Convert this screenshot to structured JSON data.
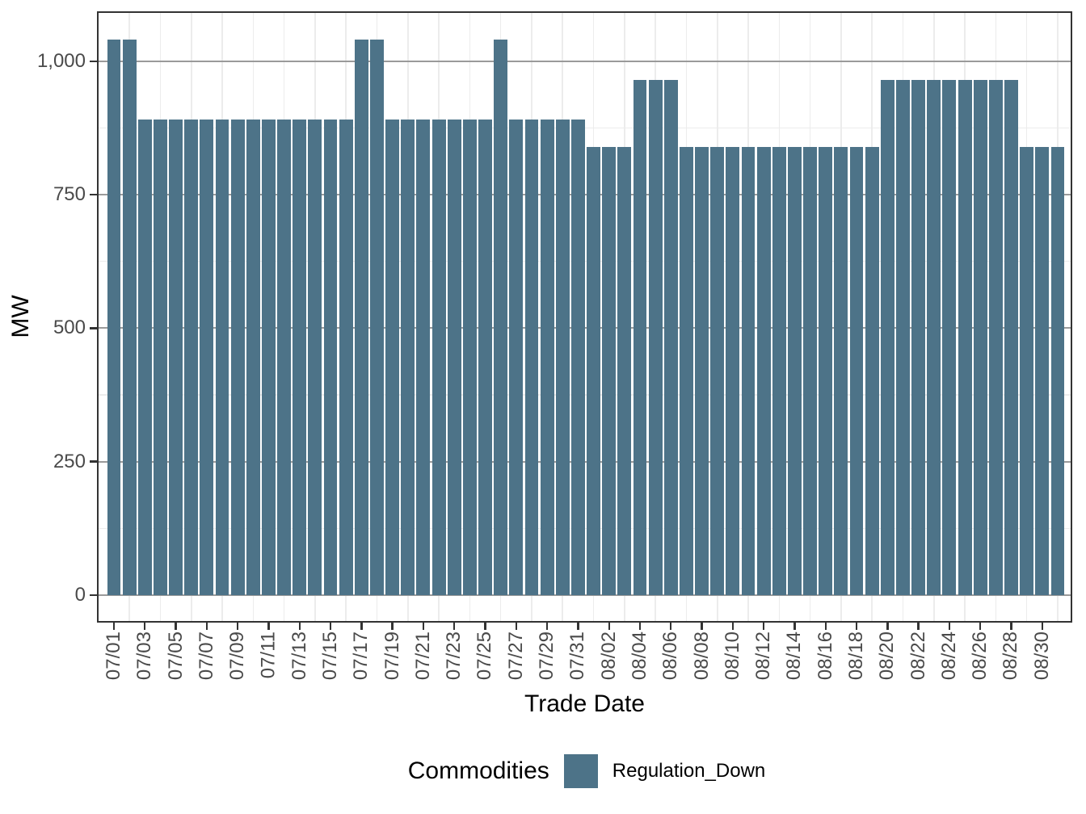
{
  "chart_data": {
    "type": "bar",
    "title": "",
    "xlabel": "Trade Date",
    "ylabel": "MW",
    "legend_title": "Commodities",
    "legend_position": "bottom",
    "grid": "on",
    "ylim": [
      0,
      1093
    ],
    "y_ticks": [
      0,
      250,
      500,
      750,
      1000
    ],
    "y_tick_labels": [
      "0",
      "250",
      "500",
      "750",
      "1,000"
    ],
    "x_tick_every": 2,
    "x_tick_labels": [
      "07/01",
      "07/03",
      "07/05",
      "07/07",
      "07/09",
      "07/11",
      "07/13",
      "07/15",
      "07/17",
      "07/19",
      "07/21",
      "07/23",
      "07/25",
      "07/27",
      "07/29",
      "07/31",
      "08/02",
      "08/04",
      "08/06",
      "08/08",
      "08/10",
      "08/12",
      "08/14",
      "08/16",
      "08/18",
      "08/20",
      "08/22",
      "08/24",
      "08/26",
      "08/28",
      "08/30"
    ],
    "categories": [
      "07/01",
      "07/02",
      "07/03",
      "07/04",
      "07/05",
      "07/06",
      "07/07",
      "07/08",
      "07/09",
      "07/10",
      "07/11",
      "07/12",
      "07/13",
      "07/14",
      "07/15",
      "07/16",
      "07/17",
      "07/18",
      "07/19",
      "07/20",
      "07/21",
      "07/22",
      "07/23",
      "07/24",
      "07/25",
      "07/26",
      "07/27",
      "07/28",
      "07/29",
      "07/30",
      "07/31",
      "08/01",
      "08/02",
      "08/03",
      "08/04",
      "08/05",
      "08/06",
      "08/07",
      "08/08",
      "08/09",
      "08/10",
      "08/11",
      "08/12",
      "08/13",
      "08/14",
      "08/15",
      "08/16",
      "08/17",
      "08/18",
      "08/19",
      "08/20",
      "08/21",
      "08/22",
      "08/23",
      "08/24",
      "08/25",
      "08/26",
      "08/27",
      "08/28",
      "08/29",
      "08/30",
      "08/31"
    ],
    "series": [
      {
        "name": "Regulation_Down",
        "values": [
          1040,
          1040,
          890,
          890,
          890,
          890,
          890,
          890,
          890,
          890,
          890,
          890,
          890,
          890,
          890,
          890,
          1040,
          1040,
          890,
          890,
          890,
          890,
          890,
          890,
          890,
          1040,
          890,
          890,
          890,
          890,
          890,
          840,
          840,
          840,
          965,
          965,
          965,
          840,
          840,
          840,
          840,
          840,
          840,
          840,
          840,
          840,
          840,
          840,
          840,
          840,
          965,
          965,
          965,
          965,
          965,
          965,
          965,
          965,
          965,
          840,
          840,
          840
        ]
      }
    ]
  },
  "colors": {
    "bar": "#4d7388",
    "panel_border": "#333333",
    "grid_major_h": "#9a9a9a",
    "grid_minor": "#ececec",
    "axis_text": "#4a4a4a",
    "axis_title": "#000000",
    "tick_mark": "#333333"
  }
}
